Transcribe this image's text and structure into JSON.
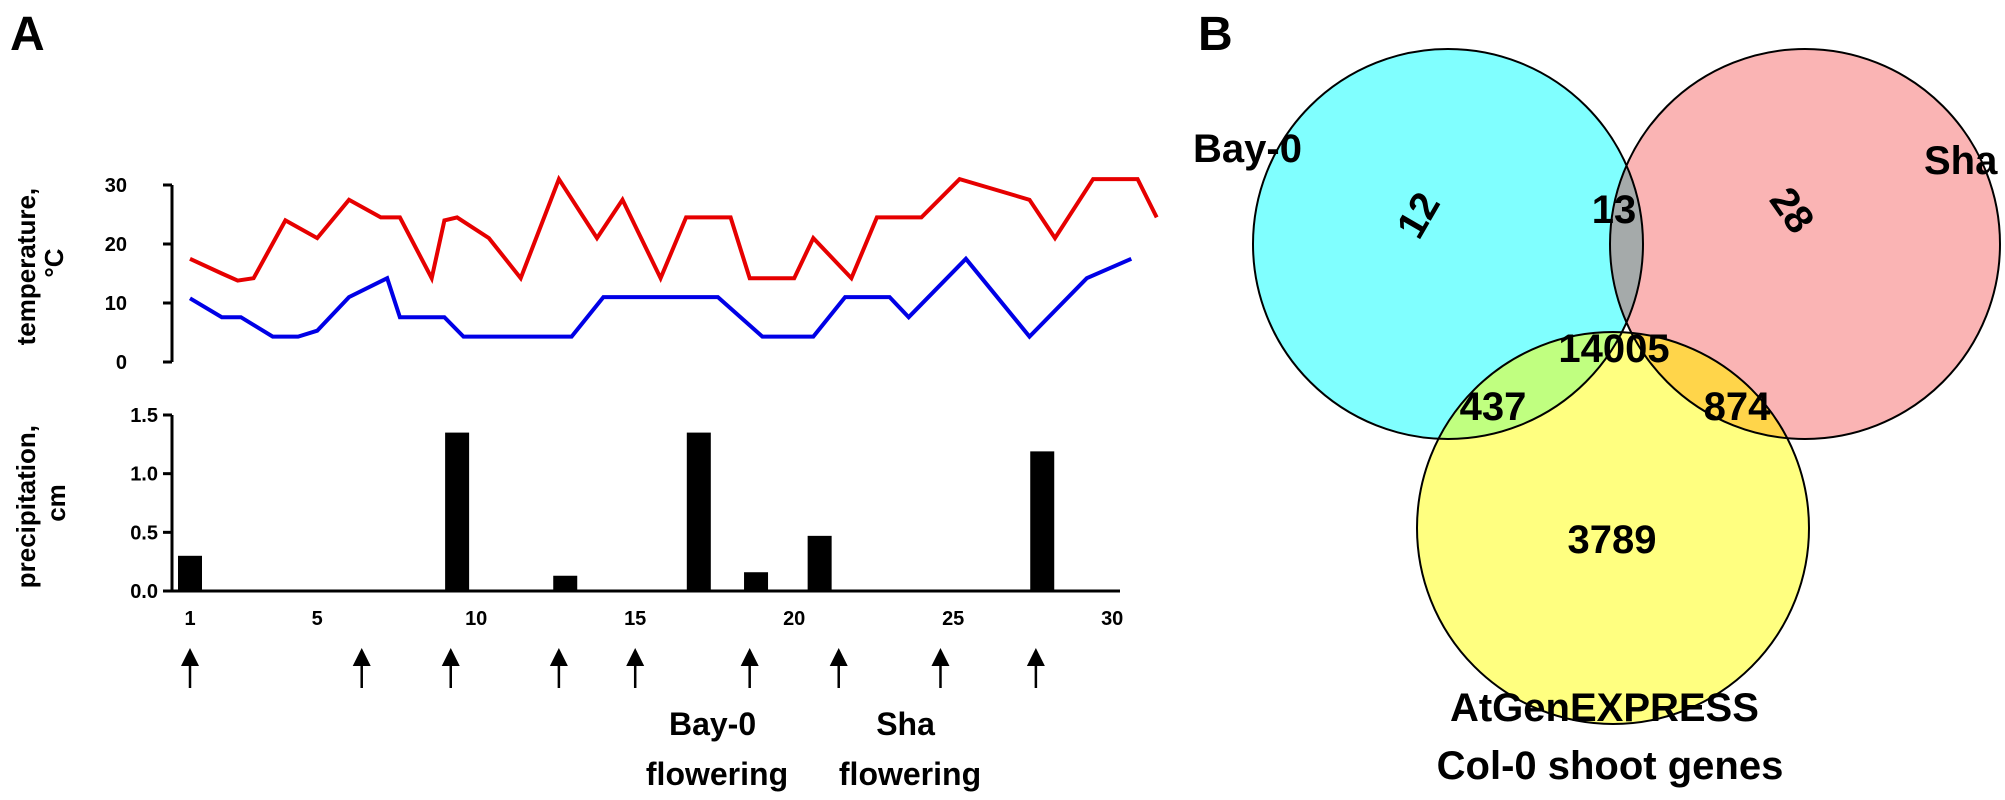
{
  "panel_a": {
    "label": "A",
    "temperature_ylabel_1": "temperature,",
    "temperature_ylabel_2": "°C",
    "precip_ylabel_1": "precipitation,",
    "precip_ylabel_2": "cm",
    "annotations": [
      {
        "line1": "Bay-0",
        "line2": "flowering"
      },
      {
        "line1": "Sha",
        "line2": "flowering"
      }
    ]
  },
  "panel_b": {
    "label": "B",
    "set_labels": [
      "Bay-0",
      "Sha"
    ],
    "bottom_label_1": "AtGenEXPRESS",
    "bottom_label_2": "Col-0 shoot genes"
  },
  "chart_data": [
    {
      "type": "line",
      "xlim": [
        0.5,
        31.5
      ],
      "ylim": [
        0,
        30
      ],
      "yticks": [
        0,
        10,
        20,
        30
      ],
      "colors": {
        "high": "#e60000",
        "low": "#0000e6"
      },
      "series": [
        {
          "key": "high",
          "points": [
            [
              1,
              17.5
            ],
            [
              2,
              15
            ],
            [
              2.5,
              13.8
            ],
            [
              3,
              14.2
            ],
            [
              4,
              24
            ],
            [
              5,
              21
            ],
            [
              6,
              27.5
            ],
            [
              7,
              24.5
            ],
            [
              7.6,
              24.5
            ],
            [
              8.6,
              14.2
            ],
            [
              9,
              24
            ],
            [
              9.4,
              24.5
            ],
            [
              10.4,
              21
            ],
            [
              11.4,
              14.2
            ],
            [
              12.6,
              31
            ],
            [
              13.8,
              21
            ],
            [
              14.6,
              27.5
            ],
            [
              15.8,
              14.2
            ],
            [
              16.6,
              24.5
            ],
            [
              18,
              24.5
            ],
            [
              18.6,
              14.2
            ],
            [
              20,
              14.2
            ],
            [
              20.6,
              21
            ],
            [
              21.8,
              14.2
            ],
            [
              22.6,
              24.5
            ],
            [
              24,
              24.5
            ],
            [
              25.2,
              31
            ],
            [
              27.4,
              27.5
            ],
            [
              28.2,
              21
            ],
            [
              29.4,
              31
            ],
            [
              30.8,
              31
            ],
            [
              31.4,
              24.5
            ]
          ]
        },
        {
          "key": "low",
          "points": [
            [
              1,
              10.8
            ],
            [
              2,
              7.6
            ],
            [
              2.6,
              7.6
            ],
            [
              3.6,
              4.3
            ],
            [
              4.4,
              4.3
            ],
            [
              5,
              5.3
            ],
            [
              6,
              11
            ],
            [
              7.2,
              14.2
            ],
            [
              7.6,
              7.6
            ],
            [
              9,
              7.6
            ],
            [
              9.6,
              4.3
            ],
            [
              13,
              4.3
            ],
            [
              14,
              11
            ],
            [
              17.6,
              11
            ],
            [
              19,
              4.3
            ],
            [
              20.6,
              4.3
            ],
            [
              21.6,
              11
            ],
            [
              23,
              11
            ],
            [
              23.6,
              7.6
            ],
            [
              25.4,
              17.5
            ],
            [
              27.4,
              4.3
            ],
            [
              29.2,
              14.2
            ],
            [
              30.6,
              17.5
            ]
          ]
        }
      ]
    },
    {
      "type": "bar",
      "xlim": [
        0.5,
        31.5
      ],
      "ylim": [
        0,
        1.5
      ],
      "yticks": [
        "0.0",
        "0.5",
        "1.0",
        "1.5"
      ],
      "xticks": [
        1,
        5,
        10,
        15,
        20,
        25,
        30
      ],
      "bar_color": "#000000",
      "bars": [
        {
          "x": 1,
          "value": 0.3
        },
        {
          "x": 9.4,
          "value": 1.35
        },
        {
          "x": 12.8,
          "value": 0.13
        },
        {
          "x": 17,
          "value": 1.35
        },
        {
          "x": 18.8,
          "value": 0.16
        },
        {
          "x": 20.8,
          "value": 0.47
        },
        {
          "x": 27.8,
          "value": 1.19
        }
      ],
      "arrow_days": [
        1,
        6.4,
        9.2,
        12.6,
        15,
        18.6,
        21.4,
        24.6,
        27.6
      ]
    },
    {
      "type": "venn",
      "sets": [
        {
          "name": "Bay-0",
          "color": "#80ffff"
        },
        {
          "name": "Sha",
          "color": "#fab4b4"
        },
        {
          "name": "AtGenEXPRESS Col-0 shoot genes",
          "color": "#ffff80"
        }
      ],
      "overlap_colors": {
        "Bay-0&Sha": "#a5aaaa",
        "Bay-0&Col-0": "#c0ff80",
        "Sha&Col-0": "#ffd54a",
        "all": "#cbcb64"
      },
      "regions": [
        {
          "sets": [
            "Bay-0"
          ],
          "value": "12"
        },
        {
          "sets": [
            "Sha"
          ],
          "value": "28"
        },
        {
          "sets": [
            "Bay-0",
            "Sha"
          ],
          "value": "13"
        },
        {
          "sets": [
            "Bay-0",
            "Sha",
            "Col-0"
          ],
          "value": "14005"
        },
        {
          "sets": [
            "Bay-0",
            "Col-0"
          ],
          "value": "437"
        },
        {
          "sets": [
            "Sha",
            "Col-0"
          ],
          "value": "874"
        },
        {
          "sets": [
            "Col-0"
          ],
          "value": "3789"
        }
      ]
    }
  ]
}
